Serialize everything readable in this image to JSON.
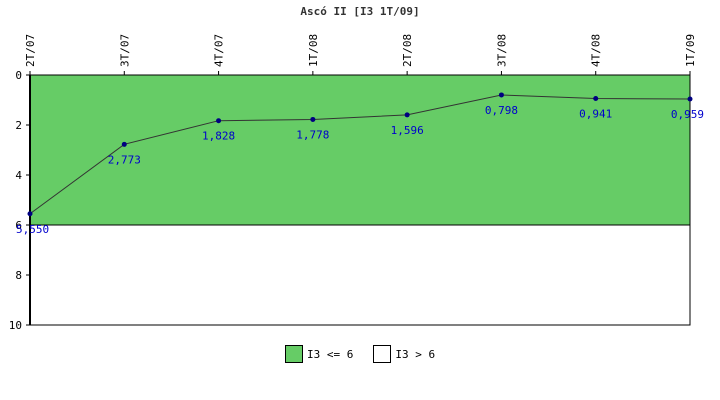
{
  "chart_data": {
    "type": "line",
    "title": "Ascó II [I3 1T/09]",
    "x": [
      "2T/07",
      "3T/07",
      "4T/07",
      "1T/08",
      "2T/08",
      "3T/08",
      "4T/08",
      "1T/09"
    ],
    "series": [
      {
        "values": [
          5.55,
          2.773,
          1.828,
          1.778,
          1.596,
          0.798,
          0.941,
          0.959
        ],
        "labels": [
          "5,550",
          "2,773",
          "1,828",
          "1,778",
          "1,596",
          "0,798",
          "0,941",
          "0,959"
        ],
        "color": "#333333",
        "marker_color": "#000080"
      }
    ],
    "yticks": [
      "0",
      "2",
      "4",
      "6",
      "8",
      "10"
    ],
    "ylim": [
      0,
      10
    ],
    "y_inverted": true,
    "bands": [
      {
        "name": "I3 <= 6",
        "from": 0,
        "to": 6,
        "color": "#66cc66"
      },
      {
        "name": "I3 > 6",
        "from": 6,
        "to": 10,
        "color": "#ffffff"
      }
    ],
    "legend_position": "bottom",
    "grid": false
  }
}
